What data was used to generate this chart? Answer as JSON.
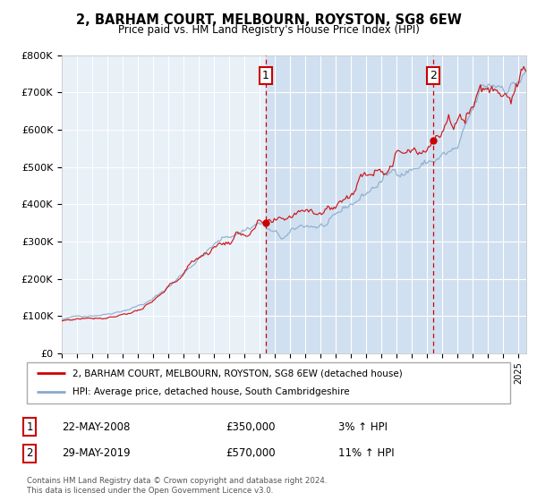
{
  "title": "2, BARHAM COURT, MELBOURN, ROYSTON, SG8 6EW",
  "subtitle": "Price paid vs. HM Land Registry's House Price Index (HPI)",
  "legend_line1": "2, BARHAM COURT, MELBOURN, ROYSTON, SG8 6EW (detached house)",
  "legend_line2": "HPI: Average price, detached house, South Cambridgeshire",
  "annotation1_label": "1",
  "annotation1_date": "22-MAY-2008",
  "annotation1_price": "£350,000",
  "annotation1_hpi": "3% ↑ HPI",
  "annotation1_year": 2008.38,
  "annotation1_value": 350000,
  "annotation2_label": "2",
  "annotation2_date": "29-MAY-2019",
  "annotation2_price": "£570,000",
  "annotation2_hpi": "11% ↑ HPI",
  "annotation2_year": 2019.38,
  "annotation2_value": 570000,
  "ylabel_ticks": [
    "£0",
    "£100K",
    "£200K",
    "£300K",
    "£400K",
    "£500K",
    "£600K",
    "£700K",
    "£800K"
  ],
  "ytick_values": [
    0,
    100000,
    200000,
    300000,
    400000,
    500000,
    600000,
    700000,
    800000
  ],
  "xmin": 1995.0,
  "xmax": 2025.5,
  "ymin": 0,
  "ymax": 800000,
  "plot_bg_color": "#e8f0f8",
  "shaded_bg_color": "#d0e0f0",
  "line1_color": "#cc0000",
  "line2_color": "#88aacc",
  "grid_color": "#ffffff",
  "annotation_box_color": "#cc0000",
  "dashed_line_color": "#cc0000",
  "copyright_text": "Contains HM Land Registry data © Crown copyright and database right 2024.\nThis data is licensed under the Open Government Licence v3.0.",
  "shaded_region_start": 2008.38,
  "shaded_region_end": 2025.5
}
